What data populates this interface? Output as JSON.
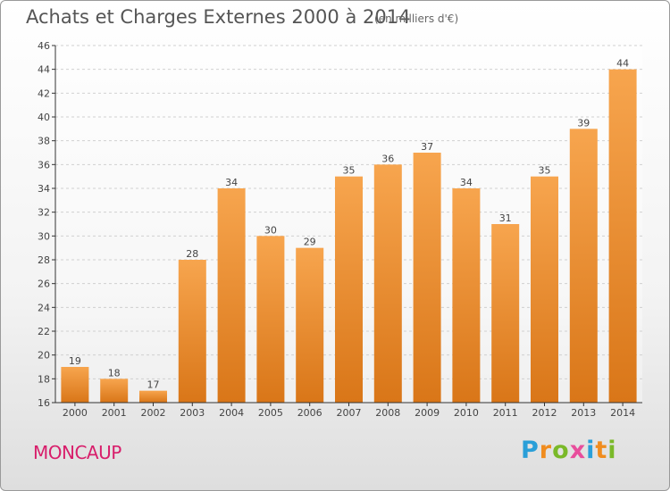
{
  "header": {
    "title": "Achats et Charges Externes 2000 à 2014",
    "subtitle": "(en milliers d'€)"
  },
  "footer": {
    "town": "MONCAUP",
    "logo_letters": [
      "P",
      "r",
      "o",
      "x",
      "i",
      "t",
      "i"
    ],
    "logo_colors": [
      "#2a9fd8",
      "#f08c1e",
      "#7ab929",
      "#e84e9c",
      "#2a9fd8",
      "#f08c1e",
      "#7ab929"
    ]
  },
  "colors": {
    "bar_light": "#f7a54e",
    "bar_dark": "#d97618",
    "grid": "#d0d0d0",
    "axis": "#333333"
  },
  "chart_data": {
    "type": "bar",
    "categories": [
      "2000",
      "2001",
      "2002",
      "2003",
      "2004",
      "2005",
      "2006",
      "2007",
      "2008",
      "2009",
      "2010",
      "2011",
      "2012",
      "2013",
      "2014"
    ],
    "values": [
      19,
      18,
      17,
      28,
      34,
      30,
      29,
      35,
      36,
      37,
      34,
      31,
      35,
      39,
      44
    ],
    "yticks": [
      16,
      18,
      20,
      22,
      24,
      26,
      28,
      30,
      32,
      34,
      36,
      38,
      40,
      42,
      44,
      46
    ],
    "ylim": [
      16,
      46
    ],
    "grid": true,
    "data_labels": true
  }
}
